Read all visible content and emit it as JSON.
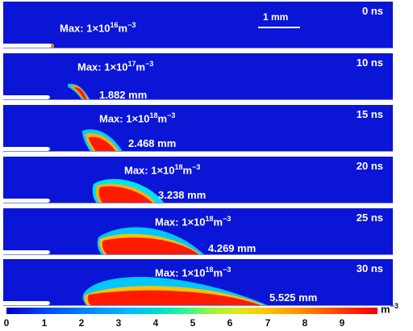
{
  "panels": [
    {
      "max_label": "Max: 1×10",
      "max_exp": "16",
      "unit": "m",
      "unit_exp": "−3",
      "time": "0 ns",
      "length": ""
    },
    {
      "max_label": "Max: 1×10",
      "max_exp": "17",
      "unit": "m",
      "unit_exp": "−3",
      "time": "10 ns",
      "length": "1.882 mm"
    },
    {
      "max_label": "Max: 1×10",
      "max_exp": "18",
      "unit": "m",
      "unit_exp": "−3",
      "time": "15 ns",
      "length": "2.468 mm"
    },
    {
      "max_label": "Max: 1×10",
      "max_exp": "18",
      "unit": "m",
      "unit_exp": "−3",
      "time": "20 ns",
      "length": "3.238 mm"
    },
    {
      "max_label": "Max: 1×10",
      "max_exp": "18",
      "unit": "m",
      "unit_exp": "−3",
      "time": "25 ns",
      "length": "4.269 mm"
    },
    {
      "max_label": "Max: 1×10",
      "max_exp": "18",
      "unit": "m",
      "unit_exp": "−3",
      "time": "30 ns",
      "length": "5.525 mm"
    }
  ],
  "scalebar": {
    "label": "1 mm"
  },
  "colorbar": {
    "ticks": [
      "0",
      "1",
      "2",
      "3",
      "4",
      "5",
      "6",
      "7",
      "8",
      "9"
    ],
    "unit": "m",
    "unit_exp": "−3"
  }
}
